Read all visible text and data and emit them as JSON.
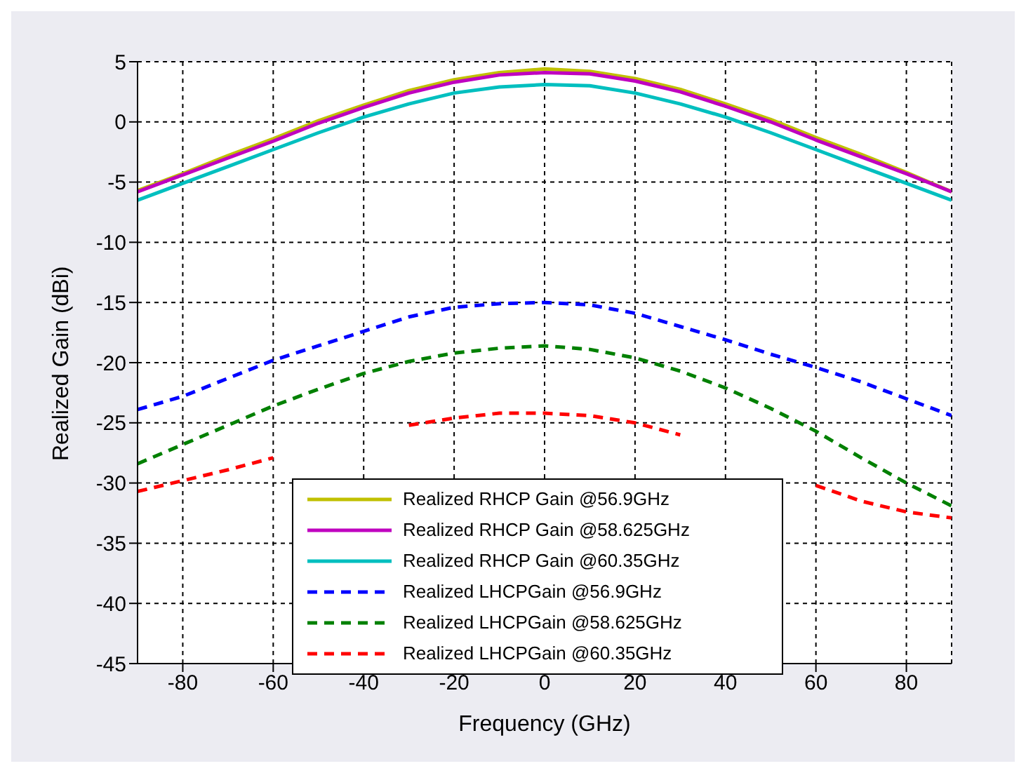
{
  "chart_data": {
    "type": "line",
    "xlabel": "Frequency (GHz)",
    "ylabel": "Realized Gain (dBi)",
    "x": [
      -90,
      -80,
      -70,
      -60,
      -50,
      -40,
      -30,
      -20,
      -10,
      0,
      10,
      20,
      30,
      40,
      50,
      60,
      70,
      80,
      90
    ],
    "xlim": [
      -90,
      90
    ],
    "xticks": [
      -80,
      -60,
      -40,
      -20,
      0,
      20,
      40,
      60,
      80
    ],
    "ylim": [
      -45,
      5
    ],
    "yticks": [
      -45,
      -40,
      -35,
      -30,
      -25,
      -20,
      -15,
      -10,
      -5,
      0,
      5
    ],
    "grid": true,
    "legend": "bottom",
    "marker": "none",
    "series": [
      {
        "name": "Realized RHCP Gain @56.9GHz",
        "color": "#c0c000",
        "line_style": "solid",
        "values": [
          -5.7,
          -4.3,
          -2.8,
          -1.4,
          0.1,
          1.4,
          2.6,
          3.5,
          4.1,
          4.4,
          4.2,
          3.6,
          2.7,
          1.5,
          0.2,
          -1.3,
          -2.7,
          -4.2,
          -5.8
        ]
      },
      {
        "name": "Realized RHCP Gain @58.625GHz",
        "color": "#bf00bf",
        "line_style": "solid",
        "values": [
          -5.8,
          -4.4,
          -3.0,
          -1.6,
          -0.1,
          1.2,
          2.4,
          3.3,
          3.9,
          4.1,
          4.0,
          3.4,
          2.5,
          1.3,
          0.0,
          -1.5,
          -2.9,
          -4.3,
          -5.8
        ]
      },
      {
        "name": "Realized RHCP Gain @60.35GHz",
        "color": "#00bfbf",
        "line_style": "solid",
        "values": [
          -6.5,
          -5.1,
          -3.7,
          -2.3,
          -0.9,
          0.4,
          1.5,
          2.4,
          2.9,
          3.1,
          3.0,
          2.4,
          1.5,
          0.4,
          -0.9,
          -2.3,
          -3.7,
          -5.1,
          -6.5
        ]
      },
      {
        "name": "Realized LHCPGain @56.9GHz",
        "color": "#0000ff",
        "line_style": "dashed",
        "values": [
          -23.9,
          -22.8,
          -21.3,
          -19.8,
          -18.6,
          -17.4,
          -16.2,
          -15.4,
          -15.1,
          -15.0,
          -15.2,
          -15.9,
          -17.0,
          -18.1,
          -19.3,
          -20.4,
          -21.6,
          -23.0,
          -24.4
        ]
      },
      {
        "name": "Realized LHCPGain @58.625GHz",
        "color": "#008000",
        "line_style": "dashed",
        "values": [
          -28.4,
          -26.8,
          -25.2,
          -23.6,
          -22.2,
          -20.9,
          -19.9,
          -19.2,
          -18.8,
          -18.6,
          -18.9,
          -19.6,
          -20.7,
          -22.1,
          -23.8,
          -25.7,
          -27.9,
          -30.0,
          -31.9
        ]
      },
      {
        "name": "Realized LHCPGain @60.35GHz",
        "color": "#ff0000",
        "line_style": "dashed",
        "values": [
          -30.7,
          -29.8,
          -28.9,
          -27.9,
          null,
          null,
          -25.2,
          -24.6,
          -24.2,
          -24.2,
          -24.4,
          -25.0,
          -26.0,
          null,
          null,
          -30.2,
          -31.5,
          -32.4,
          -32.9
        ]
      }
    ]
  }
}
